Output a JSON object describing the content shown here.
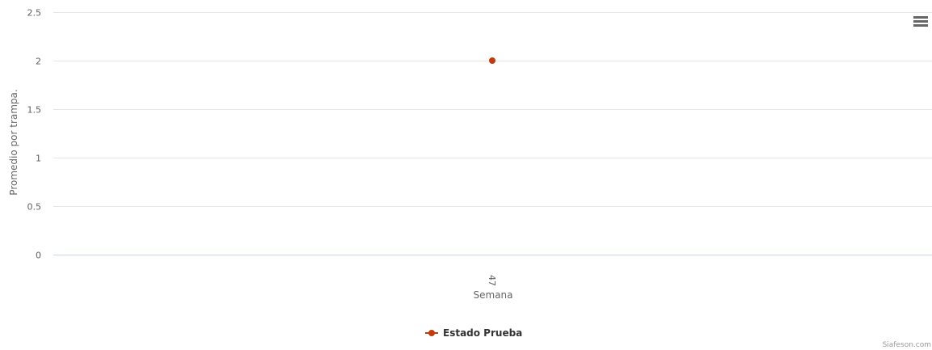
{
  "chart_data": {
    "type": "line",
    "title": "",
    "xlabel": "Semana",
    "ylabel": "Promedio por trampa.",
    "categories": [
      "47"
    ],
    "ylim": [
      0,
      2.5
    ],
    "yticks": [
      "0",
      "0.5",
      "1",
      "1.5",
      "2",
      "2.5"
    ],
    "grid": true,
    "legend_position": "bottom-center",
    "series": [
      {
        "name": "Estado Prueba",
        "color": "#c23b0e",
        "values": [
          2
        ]
      }
    ]
  },
  "credits": "Siafeson.com",
  "menu": {
    "icon": "hamburger-menu-icon"
  }
}
